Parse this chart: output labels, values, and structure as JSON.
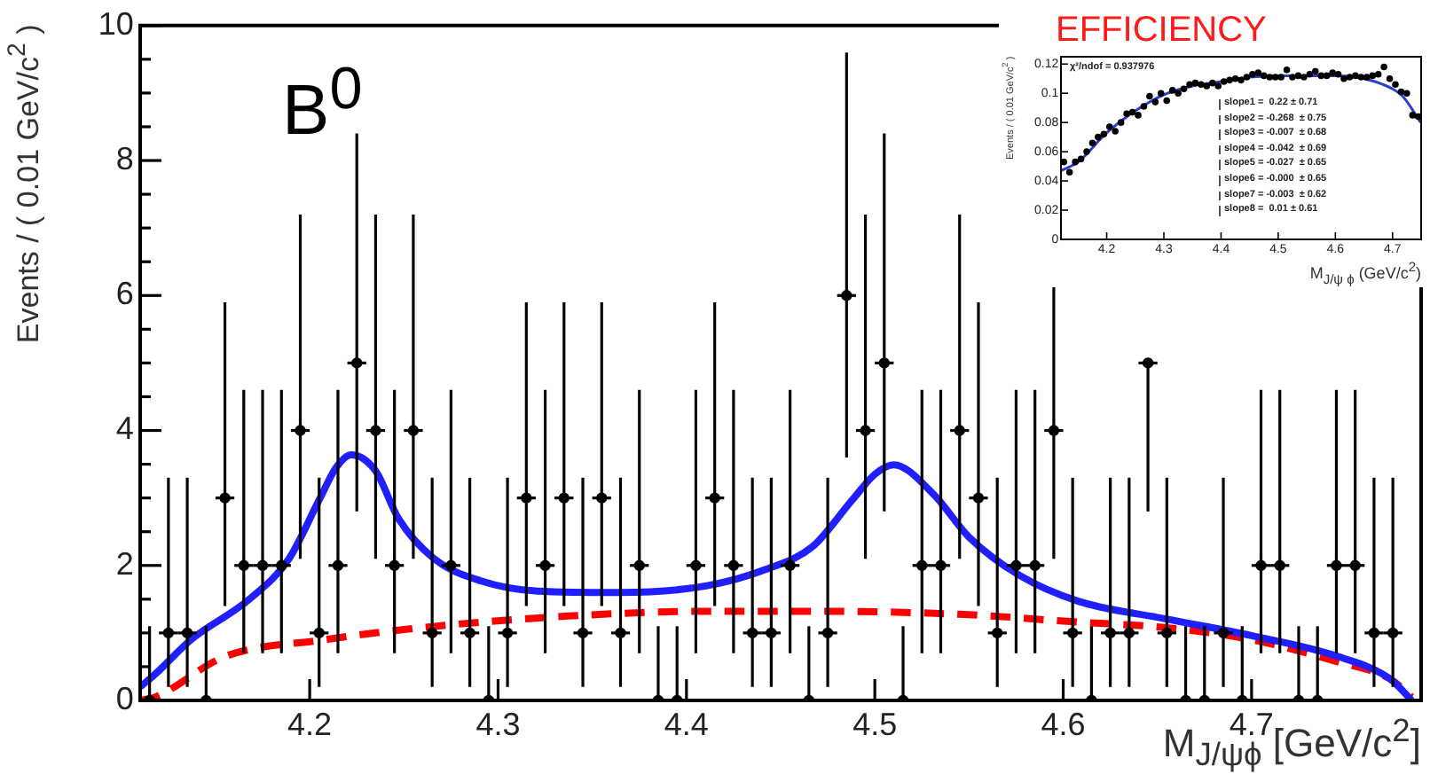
{
  "chart_data": [
    {
      "type": "scatter",
      "xlabel": "M$_{J/ψϕ}$ [GeV/c$^{2}$]",
      "ylabel": "Events / ( 0.01 GeV/c$^{2}$ )",
      "annotations": [
        "B$^{0}$"
      ],
      "xlim": [
        4.11,
        4.79
      ],
      "ylim": [
        0,
        10
      ],
      "xticks": [
        4.2,
        4.3,
        4.4,
        4.5,
        4.6,
        4.7
      ],
      "yticks": [
        0,
        {
          "value": 0.5,
          "label": null
        },
        {
          "value": 1,
          "label": null
        },
        {
          "value": 1.5,
          "label": null
        },
        2,
        {
          "value": 2.5,
          "label": null
        },
        {
          "value": 3,
          "label": null
        },
        {
          "value": 3.5,
          "label": null
        },
        4,
        {
          "value": 4.5,
          "label": null
        },
        {
          "value": 5,
          "label": null
        },
        {
          "value": 5.5,
          "label": null
        },
        6,
        {
          "value": 6.5,
          "label": null
        },
        {
          "value": 7,
          "label": null
        },
        {
          "value": 7.5,
          "label": null
        },
        8,
        {
          "value": 8.5,
          "label": null
        },
        {
          "value": 9,
          "label": null
        },
        {
          "value": 9.5,
          "label": null
        },
        10
      ],
      "grid": false,
      "legend": false,
      "series": [
        {
          "type": "scatter",
          "color": "#000000",
          "marker": "circle",
          "x": [
            4.115,
            4.125,
            4.135,
            4.145,
            4.155,
            4.165,
            4.175,
            4.185,
            4.195,
            4.205,
            4.215,
            4.225,
            4.235,
            4.245,
            4.255,
            4.265,
            4.275,
            4.285,
            4.295,
            4.305,
            4.315,
            4.325,
            4.335,
            4.345,
            4.355,
            4.365,
            4.375,
            4.385,
            4.395,
            4.405,
            4.415,
            4.425,
            4.435,
            4.445,
            4.455,
            4.465,
            4.475,
            4.485,
            4.495,
            4.505,
            4.515,
            4.525,
            4.535,
            4.545,
            4.555,
            4.565,
            4.575,
            4.585,
            4.595,
            4.605,
            4.615,
            4.625,
            4.635,
            4.645,
            4.655,
            4.665,
            4.675,
            4.685,
            4.695,
            4.705,
            4.715,
            4.725,
            4.735,
            4.745,
            4.755,
            4.765,
            4.775
          ],
          "values": [
            0,
            1,
            1,
            0,
            3,
            2,
            2,
            2,
            4,
            1,
            2,
            5,
            4,
            2,
            4,
            1,
            2,
            1,
            0,
            1,
            3,
            2,
            3,
            1,
            3,
            1,
            2,
            0,
            0,
            2,
            3,
            2,
            1,
            1,
            2,
            0,
            1,
            6,
            4,
            5,
            0,
            2,
            2,
            4,
            3,
            1,
            2,
            2,
            4,
            1,
            0,
            1,
            1,
            5,
            1,
            0,
            0,
            1,
            0,
            2,
            2,
            0,
            0,
            2,
            2,
            1,
            1
          ],
          "errors": [
            [
              0,
              1.1
            ],
            [
              0.2,
              3.3
            ],
            [
              0.2,
              3.3
            ],
            [
              0,
              1.1
            ],
            [
              1.4,
              5.9
            ],
            [
              0.7,
              4.6
            ],
            [
              0.7,
              4.6
            ],
            [
              0.7,
              4.6
            ],
            [
              2.1,
              7.2
            ],
            [
              0.2,
              3.3
            ],
            [
              0.7,
              4.6
            ],
            [
              2.8,
              8.4
            ],
            [
              2.1,
              7.2
            ],
            [
              0.7,
              4.6
            ],
            [
              2.1,
              7.2
            ],
            [
              0.2,
              3.3
            ],
            [
              0.7,
              4.6
            ],
            [
              0.2,
              3.3
            ],
            [
              0,
              1.1
            ],
            [
              0.2,
              3.3
            ],
            [
              1.4,
              5.9
            ],
            [
              0.7,
              4.6
            ],
            [
              1.4,
              5.9
            ],
            [
              0.2,
              3.3
            ],
            [
              1.4,
              5.9
            ],
            [
              0.2,
              3.3
            ],
            [
              0.7,
              4.6
            ],
            [
              0,
              1.1
            ],
            [
              0,
              1.1
            ],
            [
              0.7,
              4.6
            ],
            [
              1.4,
              5.9
            ],
            [
              0.7,
              4.6
            ],
            [
              0.2,
              3.3
            ],
            [
              0.2,
              3.3
            ],
            [
              0.7,
              4.6
            ],
            [
              0,
              1.1
            ],
            [
              0.2,
              3.3
            ],
            [
              3.6,
              9.6
            ],
            [
              2.1,
              7.2
            ],
            [
              2.8,
              8.4
            ],
            [
              0,
              1.1
            ],
            [
              0.7,
              4.6
            ],
            [
              0.7,
              4.6
            ],
            [
              2.1,
              7.2
            ],
            [
              1.4,
              5.9
            ],
            [
              0.2,
              3.3
            ],
            [
              0.7,
              4.6
            ],
            [
              0.7,
              4.6
            ],
            [
              2.1,
              7.2
            ],
            [
              0.2,
              3.3
            ],
            [
              0,
              1.1
            ],
            [
              0.2,
              3.3
            ],
            [
              0.2,
              3.3
            ],
            [
              2.8,
              5
            ],
            [
              0.2,
              3.3
            ],
            [
              0,
              1.1
            ],
            [
              0,
              1.1
            ],
            [
              0.2,
              3.3
            ],
            [
              0,
              1.1
            ],
            [
              0.7,
              4.6
            ],
            [
              0.7,
              4.6
            ],
            [
              0,
              1.1
            ],
            [
              0,
              1.1
            ],
            [
              0.7,
              4.6
            ],
            [
              0.7,
              4.6
            ],
            [
              0.2,
              3.3
            ],
            [
              0.2,
              3.3
            ]
          ],
          "xerrors": [
            0.005,
            0.005,
            0.005,
            0.005,
            0.005,
            0.005,
            0.005,
            0.005,
            0.005,
            0.005,
            0.005,
            0.005,
            0.005,
            0.005,
            0.005,
            0.005,
            0.005,
            0.005,
            0.005,
            0.005,
            0.005,
            0.005,
            0.005,
            0.005,
            0.005,
            0.005,
            0.005,
            0.005,
            0.005,
            0.005,
            0.005,
            0.005,
            0.005,
            0.005,
            0.005,
            0.005,
            0.005,
            0.005,
            0.005,
            0.005,
            0.005,
            0.005,
            0.005,
            0.005,
            0.005,
            0.005,
            0.005,
            0.005,
            0.005,
            0.005,
            0.005,
            0.005,
            0.005,
            0.005,
            0.005,
            0.005,
            0.005,
            0.005,
            0.005,
            0.005,
            0.005,
            0.005,
            0.005,
            0.005,
            0.005,
            0.005,
            0.005
          ]
        },
        {
          "type": "line",
          "color": "#1f1fff",
          "marker": "none",
          "line_style": "solid",
          "x": [
            4.11,
            4.118,
            4.137,
            4.168,
            4.189,
            4.205,
            4.214,
            4.222,
            4.235,
            4.247,
            4.266,
            4.291,
            4.321,
            4.365,
            4.411,
            4.442,
            4.467,
            4.488,
            4.5,
            4.51,
            4.531,
            4.55,
            4.577,
            4.608,
            4.654,
            4.7,
            4.746,
            4.774,
            4.785
          ],
          "values": [
            0.2,
            0.39,
            0.9,
            1.5,
            2.1,
            2.97,
            3.45,
            3.64,
            3.4,
            2.7,
            2.1,
            1.77,
            1.62,
            1.6,
            1.7,
            1.94,
            2.28,
            2.97,
            3.35,
            3.49,
            3.06,
            2.42,
            1.85,
            1.47,
            1.21,
            0.96,
            0.65,
            0.31,
            0
          ]
        },
        {
          "type": "line",
          "color": "#ff0000",
          "marker": "none",
          "line_style": "dashed",
          "x": [
            4.11,
            4.118,
            4.155,
            4.208,
            4.26,
            4.337,
            4.411,
            4.473,
            4.55,
            4.608,
            4.654,
            4.7,
            4.746,
            4.774,
            4.785
          ],
          "values": [
            0,
            0.05,
            0.65,
            0.9,
            1.08,
            1.25,
            1.32,
            1.32,
            1.27,
            1.16,
            1.08,
            0.9,
            0.57,
            0.31,
            0.05
          ]
        }
      ]
    },
    {
      "type": "scatter",
      "xlabel": "M$_{J/ψ ϕ}$ (GeV/c$^{2}$)",
      "ylabel": "Events / ( 0.01 GeV/c$^{2}$ )",
      "annotations": [
        "EFFICIENCY",
        "χ²/ndof = 0.937976",
        "slope1 =  0.22 ± 0.71",
        "slope2 = -0.268  ± 0.75",
        "slope3 = -0.007  ± 0.68",
        "slope4 = -0.042  ± 0.69",
        "slope5 = -0.027  ± 0.65",
        "slope6 = -0.000  ± 0.65",
        "slope7 = -0.003  ± 0.62",
        "slope8 =  0.01 ± 0.61"
      ],
      "xlim": [
        4.12,
        4.75
      ],
      "ylim": [
        0,
        0.125
      ],
      "xticks": [
        4.2,
        4.3,
        4.4,
        4.5,
        4.6,
        4.7
      ],
      "yticks": [
        0,
        0.02,
        0.04,
        0.06,
        0.08,
        0.1,
        0.12
      ],
      "grid": false,
      "legend": false,
      "series": [
        {
          "type": "scatter",
          "color": "#000000",
          "marker": "circle",
          "x": [
            4.125,
            4.135,
            4.145,
            4.155,
            4.165,
            4.175,
            4.185,
            4.195,
            4.205,
            4.215,
            4.225,
            4.235,
            4.245,
            4.255,
            4.265,
            4.275,
            4.285,
            4.295,
            4.305,
            4.315,
            4.325,
            4.335,
            4.345,
            4.355,
            4.365,
            4.375,
            4.385,
            4.395,
            4.405,
            4.415,
            4.425,
            4.435,
            4.445,
            4.455,
            4.465,
            4.475,
            4.485,
            4.495,
            4.505,
            4.515,
            4.525,
            4.535,
            4.545,
            4.555,
            4.565,
            4.575,
            4.585,
            4.595,
            4.605,
            4.615,
            4.625,
            4.635,
            4.645,
            4.655,
            4.665,
            4.675,
            4.685,
            4.695,
            4.705,
            4.715,
            4.725,
            4.735,
            4.745
          ],
          "values": [
            0.053,
            0.046,
            0.053,
            0.055,
            0.06,
            0.066,
            0.07,
            0.072,
            0.077,
            0.074,
            0.08,
            0.086,
            0.087,
            0.085,
            0.091,
            0.098,
            0.094,
            0.1,
            0.095,
            0.102,
            0.1,
            0.103,
            0.106,
            0.107,
            0.106,
            0.105,
            0.107,
            0.105,
            0.108,
            0.109,
            0.11,
            0.109,
            0.111,
            0.113,
            0.114,
            0.112,
            0.111,
            0.111,
            0.111,
            0.116,
            0.111,
            0.112,
            0.111,
            0.113,
            0.115,
            0.112,
            0.112,
            0.114,
            0.113,
            0.11,
            0.111,
            0.112,
            0.111,
            0.111,
            0.112,
            0.113,
            0.118,
            0.11,
            0.106,
            0.101,
            0.1,
            0.085,
            0.084
          ]
        },
        {
          "type": "line",
          "color": "#2a3fd0",
          "marker": "none",
          "line_style": "solid",
          "x": [
            4.12,
            4.15,
            4.2,
            4.25,
            4.3,
            4.35,
            4.4,
            4.45,
            4.5,
            4.55,
            4.6,
            4.65,
            4.7,
            4.72,
            4.749
          ],
          "values": [
            0.047,
            0.053,
            0.073,
            0.088,
            0.099,
            0.105,
            0.108,
            0.111,
            0.112,
            0.112,
            0.112,
            0.11,
            0.103,
            0.097,
            0.08
          ]
        }
      ]
    }
  ]
}
